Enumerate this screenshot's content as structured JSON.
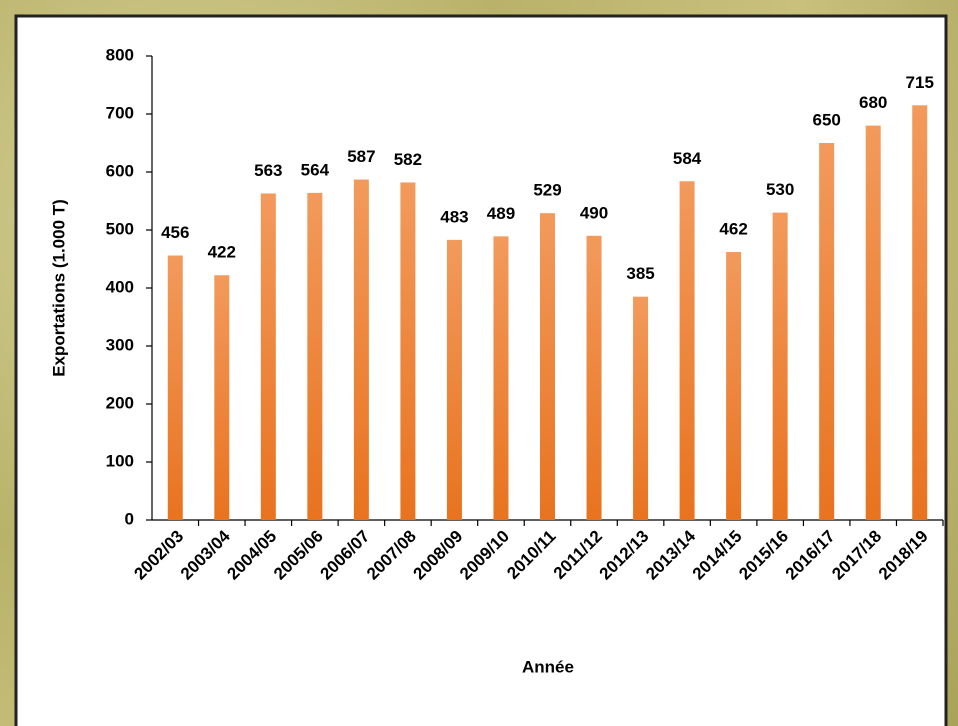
{
  "chart_data": {
    "type": "bar",
    "x_label": "Année",
    "y_label": "Exportations (1.000 T)",
    "categories": [
      "2002/03",
      "2003/04",
      "2004/05",
      "2005/06",
      "2006/07",
      "2007/08",
      "2008/09",
      "2009/10",
      "2010/11",
      "2011/12",
      "2012/13",
      "2013/14",
      "2014/15",
      "2015/16",
      "2016/17",
      "2017/18",
      "2018/19"
    ],
    "values": [
      456,
      422,
      563,
      564,
      587,
      582,
      483,
      489,
      529,
      490,
      385,
      584,
      462,
      530,
      650,
      680,
      715
    ],
    "color": "#ed7d31",
    "ylim": [
      0,
      800
    ],
    "yticks": [
      0,
      100,
      200,
      300,
      400,
      500,
      600,
      700,
      800
    ],
    "grid": false
  }
}
